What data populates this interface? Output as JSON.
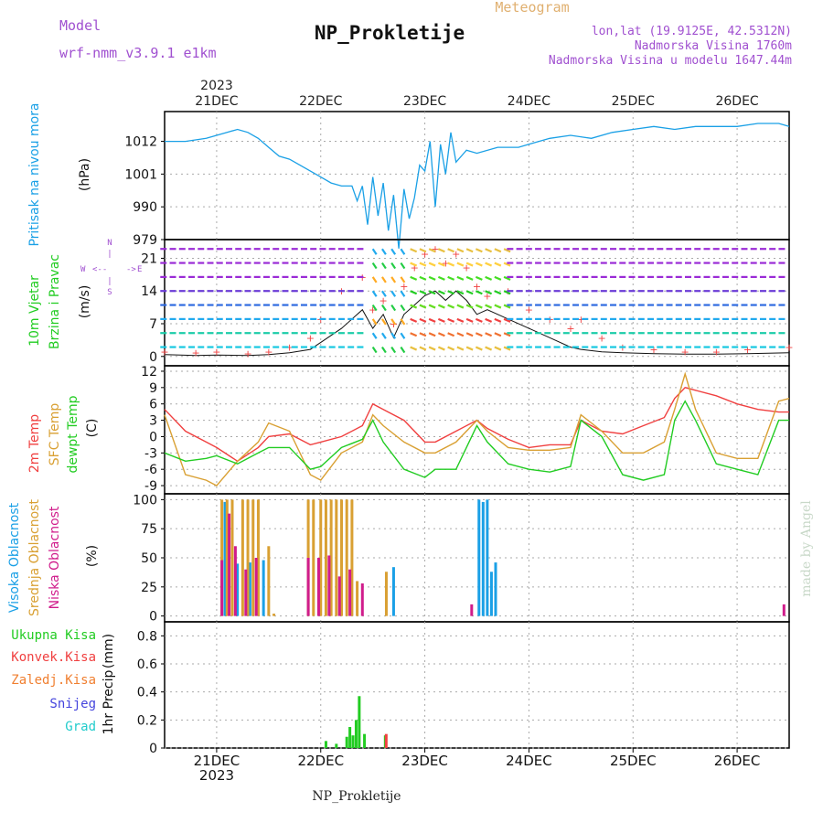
{
  "header": {
    "model_label": "Model",
    "model_value": "wrf-nmm_v3.9.1 e1km",
    "product": "Meteogram",
    "station_title": "NP_Prokletije",
    "coords": "lon,lat (19.9125E, 42.5312N)",
    "elevation": "Nadmorska Visina 1760m",
    "model_elevation": "Nadmorska Visina u modelu 1647.44m"
  },
  "footer": {
    "station": "NP_Prokletije",
    "watermark": "made by Angel"
  },
  "time_axis": {
    "year": "2023",
    "days": [
      "21DEC",
      "22DEC",
      "23DEC",
      "24DEC",
      "25DEC",
      "26DEC"
    ],
    "start_day": 20.5,
    "end_day": 26.5
  },
  "colors": {
    "pressure": "#1aa0e6",
    "temp2m": "#f04040",
    "sfc_temp": "#d9a033",
    "dewpoint": "#22cc22",
    "cloud_high": "#1aa0e6",
    "cloud_mid": "#d9a033",
    "cloud_low": "#d01c8b",
    "precip_total": "#22cc22",
    "precip_conv": "#f04040",
    "precip_frozen": "#f07f30",
    "precip_snow": "#4444dd",
    "precip_hail": "#22cccc",
    "title_purple": "#a050d0",
    "meteogram_gold": "#e0b070"
  },
  "chart_data": [
    {
      "type": "line",
      "panel": "pressure",
      "ylabel": "Pritisak na nivou mora",
      "unit": "(hPa)",
      "yticks": [
        979,
        990,
        1001,
        1012
      ],
      "ylim": [
        979,
        1022
      ],
      "x": [
        20.5,
        20.7,
        20.9,
        21.0,
        21.1,
        21.2,
        21.3,
        21.4,
        21.5,
        21.6,
        21.7,
        21.8,
        21.9,
        22.0,
        22.1,
        22.2,
        22.3,
        22.35,
        22.4,
        22.45,
        22.5,
        22.55,
        22.6,
        22.65,
        22.7,
        22.75,
        22.8,
        22.85,
        22.9,
        22.95,
        23.0,
        23.05,
        23.1,
        23.15,
        23.2,
        23.25,
        23.3,
        23.4,
        23.5,
        23.7,
        23.9,
        24.0,
        24.2,
        24.4,
        24.6,
        24.8,
        25.0,
        25.2,
        25.4,
        25.6,
        25.8,
        26.0,
        26.2,
        26.4,
        26.5
      ],
      "series": [
        {
          "values": [
            1012,
            1012,
            1013,
            1014,
            1015,
            1016,
            1015,
            1013,
            1010,
            1007,
            1006,
            1004,
            1002,
            1000,
            998,
            997,
            997,
            992,
            997,
            984,
            1000,
            987,
            998,
            982,
            994,
            976,
            996,
            986,
            993,
            1004,
            1002,
            1012,
            990,
            1011,
            1001,
            1015,
            1005,
            1009,
            1008,
            1010,
            1010,
            1011,
            1013,
            1014,
            1013,
            1015,
            1016,
            1017,
            1016,
            1017,
            1017,
            1017,
            1018,
            1018,
            1017
          ]
        }
      ]
    },
    {
      "type": "line",
      "panel": "wind",
      "ylabel": "10m Vjetar Brzina i Pravac",
      "unit": "(m/s)",
      "compass_label": "N S W E",
      "yticks": [
        0,
        7,
        14,
        21
      ],
      "ylim": [
        -2,
        25
      ],
      "x": [
        20.5,
        20.8,
        21.0,
        21.3,
        21.5,
        21.7,
        21.9,
        22.0,
        22.2,
        22.4,
        22.5,
        22.6,
        22.7,
        22.8,
        22.9,
        23.0,
        23.1,
        23.2,
        23.3,
        23.4,
        23.5,
        23.6,
        23.8,
        24.0,
        24.2,
        24.4,
        24.5,
        24.7,
        24.9,
        25.2,
        25.5,
        25.8,
        26.1,
        26.5
      ],
      "series": [
        {
          "name": "wind_speed",
          "values": [
            0.4,
            0.2,
            0.3,
            0.2,
            0.4,
            0.8,
            1.5,
            3,
            6,
            10,
            6,
            9,
            4,
            9,
            11,
            13,
            14,
            12,
            14,
            12,
            9,
            10,
            8,
            6,
            4,
            2,
            1.5,
            1,
            0.8,
            0.6,
            0.5,
            0.5,
            0.6,
            0.8
          ]
        },
        {
          "name": "wind_gust",
          "values": [
            1,
            0.8,
            1,
            0.6,
            1,
            2,
            4,
            8,
            14,
            17,
            10,
            12,
            7,
            15,
            19,
            22,
            23,
            20,
            22,
            19,
            15,
            13,
            14,
            10,
            8,
            6,
            8,
            4,
            2,
            1.5,
            1,
            1,
            1.5,
            2
          ]
        }
      ]
    },
    {
      "type": "line",
      "panel": "temperature",
      "ylabel": "2m Temp SFC Temp dewpt Temp",
      "unit": "(C)",
      "yticks": [
        -9,
        -6,
        -3,
        0,
        3,
        6,
        9,
        12
      ],
      "ylim": [
        -10.5,
        13
      ],
      "x": [
        20.5,
        20.7,
        20.9,
        21.0,
        21.2,
        21.4,
        21.5,
        21.7,
        21.9,
        22.0,
        22.2,
        22.4,
        22.5,
        22.6,
        22.8,
        23.0,
        23.1,
        23.3,
        23.5,
        23.6,
        23.8,
        24.0,
        24.2,
        24.4,
        24.5,
        24.7,
        24.9,
        25.1,
        25.3,
        25.4,
        25.5,
        25.6,
        25.8,
        26.0,
        26.2,
        26.4,
        26.5
      ],
      "series": [
        {
          "name": "2m Temp",
          "values": [
            5,
            1,
            -1,
            -2,
            -4.5,
            -2,
            0,
            0.5,
            -1.5,
            -1,
            0,
            2,
            6,
            5,
            3,
            -1,
            -1,
            1,
            3,
            1.5,
            -0.5,
            -2,
            -1.5,
            -1.5,
            3,
            1,
            0.5,
            2,
            3.5,
            7,
            9,
            8.5,
            7.5,
            6,
            5,
            4.5,
            4.5
          ]
        },
        {
          "name": "SFC Temp",
          "values": [
            4,
            -7,
            -8,
            -9,
            -4.5,
            -1,
            2.5,
            1,
            -7,
            -8,
            -3,
            -1,
            4,
            2,
            -1,
            -3,
            -3,
            -1,
            3,
            1,
            -2,
            -2.5,
            -2.5,
            -2,
            4,
            1,
            -3,
            -3,
            -1,
            5,
            11.5,
            5,
            -3,
            -4,
            -4,
            6.5,
            7
          ]
        },
        {
          "name": "dewpt Temp",
          "values": [
            -3,
            -4.5,
            -4,
            -3.5,
            -5,
            -3,
            -2,
            -2,
            -6,
            -5.5,
            -2,
            -0.5,
            3,
            -1,
            -6,
            -7.5,
            -6,
            -6,
            2,
            -1,
            -5,
            -6,
            -6.5,
            -5.5,
            3,
            0,
            -7,
            -8,
            -7,
            3,
            6.5,
            3,
            -5,
            -6,
            -7,
            3,
            3
          ]
        }
      ]
    },
    {
      "type": "bar",
      "panel": "clouds",
      "ylabel": "Visoka Oblacnost Srednja Oblacnost Niska Oblacnost",
      "unit": "(%)",
      "yticks": [
        0,
        25,
        50,
        75,
        100
      ],
      "ylim": [
        -5,
        105
      ],
      "series": [
        {
          "name": "Visoka Oblacnost",
          "x": [
            21.08,
            21.2,
            21.32,
            21.45,
            22.7,
            23.52,
            23.56,
            23.6,
            23.64,
            23.68
          ],
          "values": [
            98,
            45,
            46,
            48,
            42,
            100,
            98,
            100,
            38,
            46
          ]
        },
        {
          "name": "Srednja Oblacnost",
          "x": [
            21.05,
            21.1,
            21.15,
            21.25,
            21.3,
            21.35,
            21.4,
            21.5,
            21.55,
            21.88,
            21.93,
            22.0,
            22.05,
            22.1,
            22.15,
            22.2,
            22.25,
            22.3,
            22.35,
            22.63
          ],
          "values": [
            100,
            100,
            100,
            100,
            100,
            100,
            100,
            60,
            2,
            100,
            100,
            100,
            100,
            100,
            100,
            100,
            100,
            100,
            30,
            38
          ]
        },
        {
          "name": "Niska Oblacnost",
          "x": [
            21.05,
            21.12,
            21.18,
            21.28,
            21.38,
            21.88,
            21.98,
            22.08,
            22.18,
            22.28,
            22.4,
            23.45,
            26.45
          ],
          "values": [
            48,
            88,
            60,
            40,
            50,
            50,
            50,
            52,
            34,
            40,
            28,
            10,
            10
          ]
        }
      ]
    },
    {
      "type": "bar",
      "panel": "precipitation",
      "ylabel": "1hr Precip",
      "unit": "(mm)",
      "yticks": [
        0,
        0.2,
        0.4,
        0.6,
        0.8
      ],
      "ylim": [
        0,
        0.9
      ],
      "legend": [
        "Ukupna Kisa",
        "Konvek.Kisa",
        "Zaledj.Kisa",
        "Snijeg",
        "Grad"
      ],
      "series": [
        {
          "name": "Ukupna Kisa",
          "x": [
            22.05,
            22.15,
            22.25,
            22.28,
            22.31,
            22.34,
            22.37,
            22.42,
            22.62
          ],
          "values": [
            0.05,
            0.03,
            0.08,
            0.15,
            0.09,
            0.2,
            0.37,
            0.1,
            0.09
          ]
        },
        {
          "name": "Konvek.Kisa",
          "x": [
            22.62
          ],
          "values": [
            0.1
          ]
        }
      ]
    }
  ]
}
